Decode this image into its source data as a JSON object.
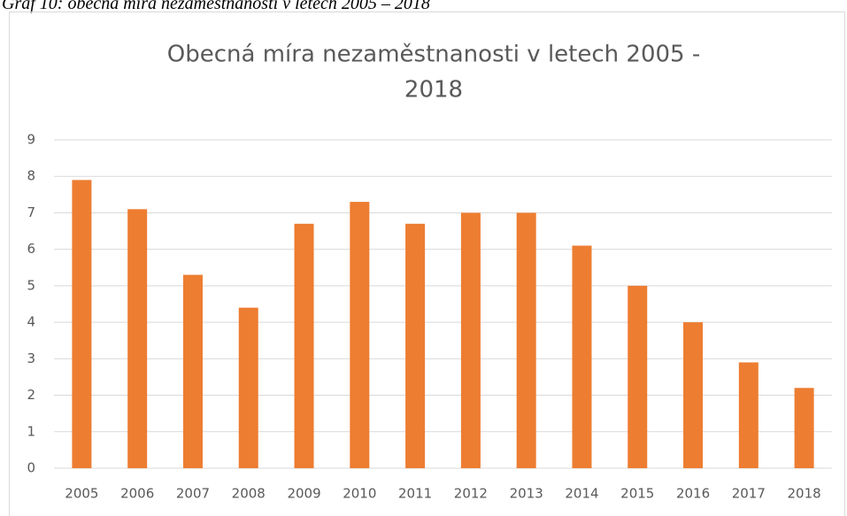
{
  "caption": "Graf 10: obecná míra nezaměstnanosti v letech 2005 – 2018",
  "chart_data": {
    "type": "bar",
    "title": [
      "Obecná míra nezaměstnanosti v letech 2005 -",
      "2018"
    ],
    "categories": [
      "2005",
      "2006",
      "2007",
      "2008",
      "2009",
      "2010",
      "2011",
      "2012",
      "2013",
      "2014",
      "2015",
      "2016",
      "2017",
      "2018"
    ],
    "values": [
      7.9,
      7.1,
      5.3,
      4.4,
      6.7,
      7.3,
      6.7,
      7.0,
      7.0,
      6.1,
      5.0,
      4.0,
      2.9,
      2.2
    ],
    "color": "#ed7d31",
    "ylim": [
      0,
      9
    ],
    "yticks": [
      0,
      1,
      2,
      3,
      4,
      5,
      6,
      7,
      8,
      9
    ],
    "grid": true
  }
}
